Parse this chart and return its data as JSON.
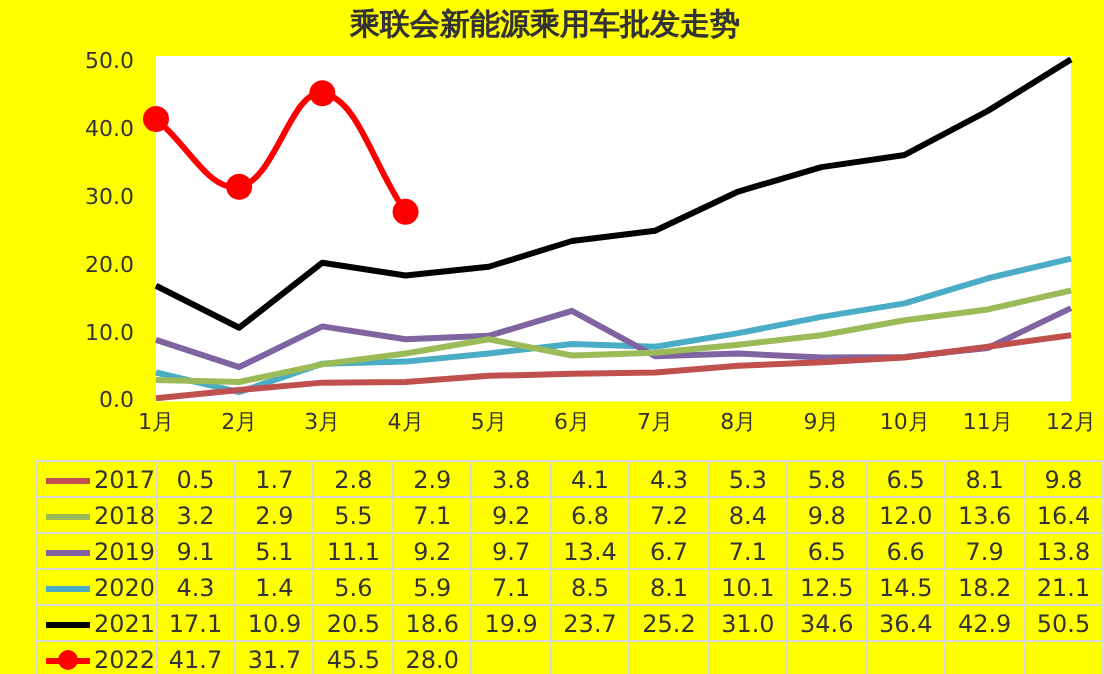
{
  "chart_data": {
    "type": "line",
    "title": "乘联会新能源乘用车批发走势",
    "categories": [
      "1月",
      "2月",
      "3月",
      "4月",
      "5月",
      "6月",
      "7月",
      "8月",
      "9月",
      "10月",
      "11月",
      "12月"
    ],
    "series": [
      {
        "name": "2017",
        "color": "#c0504d",
        "values": [
          0.5,
          1.7,
          2.8,
          2.9,
          3.8,
          4.1,
          4.3,
          5.3,
          5.8,
          6.5,
          8.1,
          9.8
        ],
        "value_labels": [
          "0.5",
          "1.7",
          "2.8",
          "2.9",
          "3.8",
          "4.1",
          "4.3",
          "5.3",
          "5.8",
          "6.5",
          "8.1",
          "9.8"
        ]
      },
      {
        "name": "2018",
        "color": "#9bbb59",
        "values": [
          3.2,
          2.9,
          5.5,
          7.1,
          9.2,
          6.8,
          7.2,
          8.4,
          9.8,
          12.0,
          13.6,
          16.4
        ],
        "value_labels": [
          "3.2",
          "2.9",
          "5.5",
          "7.1",
          "9.2",
          "6.8",
          "7.2",
          "8.4",
          "9.8",
          "12.0",
          "13.6",
          "16.4"
        ]
      },
      {
        "name": "2019",
        "color": "#8064a2",
        "values": [
          9.1,
          5.1,
          11.1,
          9.2,
          9.7,
          13.4,
          6.7,
          7.1,
          6.5,
          6.6,
          7.9,
          13.8
        ],
        "value_labels": [
          "9.1",
          "5.1",
          "11.1",
          "9.2",
          "9.7",
          "13.4",
          "6.7",
          "7.1",
          "6.5",
          "6.6",
          "7.9",
          "13.8"
        ]
      },
      {
        "name": "2020",
        "color": "#4bacc6",
        "values": [
          4.3,
          1.4,
          5.6,
          5.9,
          7.1,
          8.5,
          8.1,
          10.1,
          12.5,
          14.5,
          18.2,
          21.1
        ],
        "value_labels": [
          "4.3",
          "1.4",
          "5.6",
          "5.9",
          "7.1",
          "8.5",
          "8.1",
          "10.1",
          "12.5",
          "14.5",
          "18.2",
          "21.1"
        ]
      },
      {
        "name": "2021",
        "color": "#000000",
        "values": [
          17.1,
          10.9,
          20.5,
          18.6,
          19.9,
          23.7,
          25.2,
          31.0,
          34.6,
          36.4,
          42.9,
          50.5
        ],
        "value_labels": [
          "17.1",
          "10.9",
          "20.5",
          "18.6",
          "19.9",
          "23.7",
          "25.2",
          "31.0",
          "34.6",
          "36.4",
          "42.9",
          "50.5"
        ]
      },
      {
        "name": "2022",
        "color": "#ff0000",
        "marker": "circle",
        "values": [
          41.7,
          31.7,
          45.5,
          28.0,
          null,
          null,
          null,
          null,
          null,
          null,
          null,
          null
        ],
        "value_labels": [
          "41.7",
          "31.7",
          "45.5",
          "28.0",
          null,
          null,
          null,
          null,
          null,
          null,
          null,
          null
        ]
      }
    ],
    "ylim": [
      0,
      51
    ],
    "yticks": [
      {
        "value": 0,
        "label": "0.0"
      },
      {
        "value": 10,
        "label": "10.0"
      },
      {
        "value": 20,
        "label": "20.0"
      },
      {
        "value": 30,
        "label": "30.0"
      },
      {
        "value": 40,
        "label": "40.0"
      },
      {
        "value": 50,
        "label": "50.0"
      }
    ],
    "grid": false,
    "legend": "bottom"
  }
}
